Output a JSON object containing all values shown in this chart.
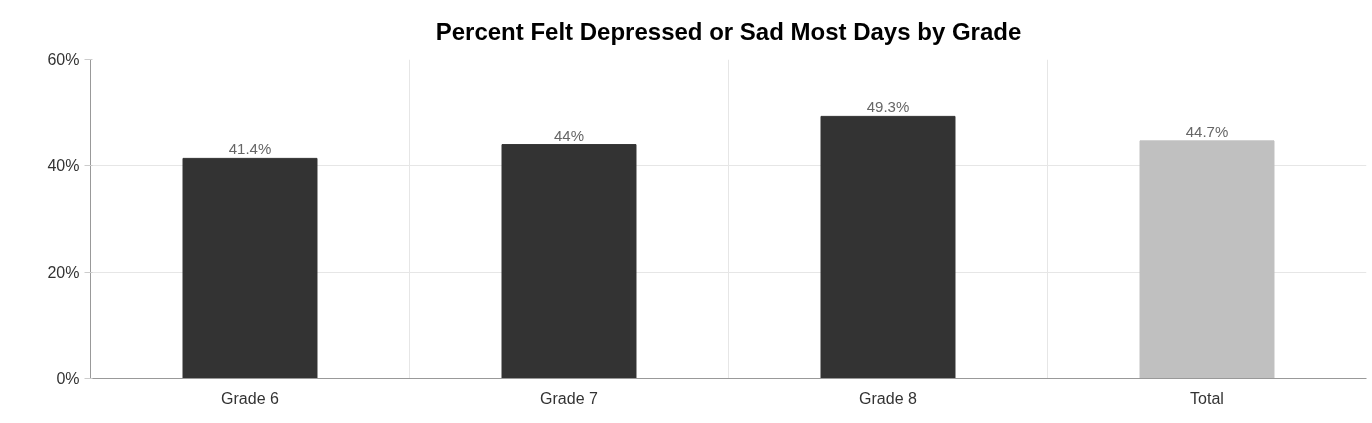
{
  "chart_data": {
    "type": "bar",
    "title": "Percent Felt Depressed or Sad Most Days by Grade",
    "categories": [
      "Grade 6",
      "Grade 7",
      "Grade 8",
      "Total"
    ],
    "values": [
      41.4,
      44,
      49.3,
      44.7
    ],
    "colors": [
      "#333333",
      "#333333",
      "#333333",
      "#c0c0c0"
    ],
    "value_labels": [
      "41.4%",
      "44%",
      "49.3%",
      "44.7%"
    ],
    "ylim": [
      0,
      60
    ],
    "yticks": [
      {
        "value": 0,
        "label": "0%"
      },
      {
        "value": 20,
        "label": "20%"
      },
      {
        "value": 40,
        "label": "40%"
      },
      {
        "value": 60,
        "label": "60%"
      }
    ],
    "grid": true
  }
}
